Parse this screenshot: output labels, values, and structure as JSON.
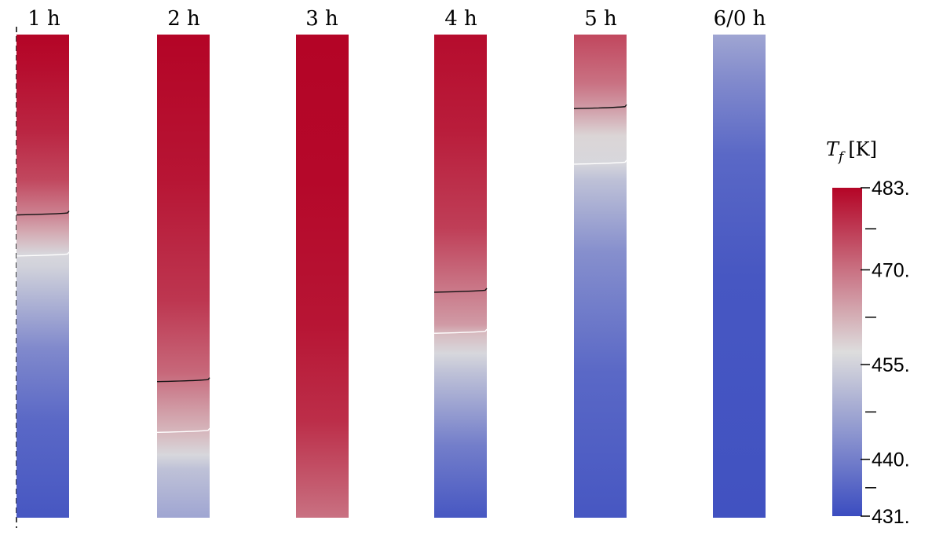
{
  "columns": [
    {
      "label": "1 h",
      "stops": [
        [
          0,
          483
        ],
        [
          0.06,
          482
        ],
        [
          0.2,
          479
        ],
        [
          0.3,
          475
        ],
        [
          0.37,
          468
        ],
        [
          0.41,
          463
        ],
        [
          0.455,
          456
        ],
        [
          0.48,
          455
        ],
        [
          0.52,
          452
        ],
        [
          0.65,
          442
        ],
        [
          0.8,
          436
        ],
        [
          1,
          433
        ]
      ],
      "isotherm_dark": 0.37,
      "isotherm_light": 0.455
    },
    {
      "label": "2 h",
      "stops": [
        [
          0,
          483
        ],
        [
          0.3,
          481
        ],
        [
          0.55,
          477
        ],
        [
          0.7,
          471
        ],
        [
          0.75,
          467
        ],
        [
          0.83,
          461
        ],
        [
          0.87,
          456
        ],
        [
          0.9,
          452
        ],
        [
          1,
          447
        ]
      ],
      "isotherm_dark": 0.715,
      "isotherm_light": 0.82
    },
    {
      "label": "3 h",
      "stops": [
        [
          0,
          483
        ],
        [
          0.3,
          482.5
        ],
        [
          0.6,
          481
        ],
        [
          0.8,
          478
        ],
        [
          0.95,
          472
        ],
        [
          1,
          470
        ]
      ],
      "isotherm_dark": null,
      "isotherm_light": null
    },
    {
      "label": "4 h",
      "stops": [
        [
          0,
          482
        ],
        [
          0.2,
          480
        ],
        [
          0.4,
          476
        ],
        [
          0.53,
          469
        ],
        [
          0.6,
          465
        ],
        [
          0.62,
          461
        ],
        [
          0.66,
          456
        ],
        [
          0.7,
          452
        ],
        [
          0.85,
          440
        ],
        [
          1,
          433
        ]
      ],
      "isotherm_dark": 0.53,
      "isotherm_light": 0.615
    },
    {
      "label": "5 h",
      "stops": [
        [
          0,
          475
        ],
        [
          0.1,
          470
        ],
        [
          0.15,
          465
        ],
        [
          0.21,
          458
        ],
        [
          0.265,
          456
        ],
        [
          0.3,
          452
        ],
        [
          0.45,
          443
        ],
        [
          0.7,
          436
        ],
        [
          1,
          433
        ]
      ],
      "isotherm_dark": 0.15,
      "isotherm_light": 0.265
    },
    {
      "label": "6/0 h",
      "stops": [
        [
          0,
          447
        ],
        [
          0.1,
          442
        ],
        [
          0.25,
          436
        ],
        [
          0.5,
          433
        ],
        [
          1,
          432
        ]
      ],
      "isotherm_dark": null,
      "isotherm_light": null
    }
  ],
  "legend": {
    "title_main": "T",
    "title_sub": "f",
    "title_unit": "[K]",
    "min": 431,
    "max": 483,
    "ticks": [
      {
        "value": 483,
        "label": "483."
      },
      {
        "value": 470,
        "label": "470."
      },
      {
        "value": 455,
        "label": "455."
      },
      {
        "value": 440,
        "label": "440."
      },
      {
        "value": 431,
        "label": "431."
      }
    ],
    "minor_ticks": [
      476.5,
      462.5,
      447.5,
      435.5
    ]
  },
  "colors": {
    "cold": "#3b4cc0",
    "mid": "#dddddd",
    "hot": "#b40426",
    "isotherm_dark": "#111111",
    "isotherm_light": "#ffffff"
  }
}
